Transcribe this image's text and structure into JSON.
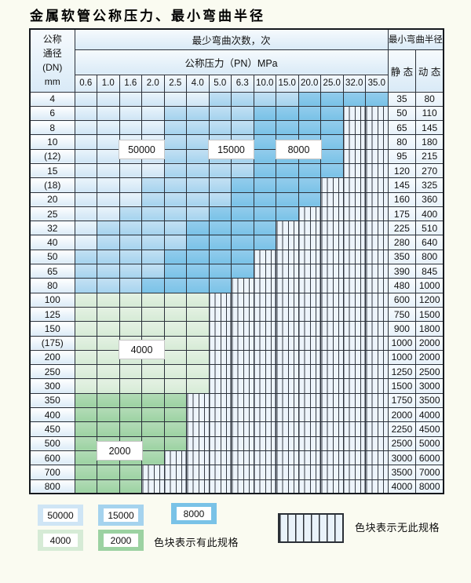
{
  "title": "金属软管公称压力、最小弯曲半径",
  "table": {
    "corner_lines": [
      "公称",
      "通径",
      "(DN)",
      "mm"
    ],
    "bend_cycles_header": "最少弯曲次数，次",
    "pressure_header": "公称压力（PN）MPa",
    "radius_header": "最小弯曲半径",
    "static_header": "静 态",
    "dynamic_header": "动 态",
    "pressures": [
      "0.6",
      "1.0",
      "1.6",
      "2.0",
      "2.5",
      "4.0",
      "5.0",
      "6.3",
      "10.0",
      "15.0",
      "20.0",
      "25.0",
      "32.0",
      "35.0"
    ],
    "rows": [
      {
        "dn": "4",
        "colored_columns": 14,
        "colored_through": "35.0",
        "palette": "blue",
        "static": "35",
        "dynamic": "80"
      },
      {
        "dn": "6",
        "colored_columns": 12,
        "colored_through": "25.0",
        "palette": "blue",
        "static": "50",
        "dynamic": "110"
      },
      {
        "dn": "8",
        "colored_columns": 12,
        "colored_through": "25.0",
        "palette": "blue",
        "static": "65",
        "dynamic": "145"
      },
      {
        "dn": "10",
        "colored_columns": 12,
        "colored_through": "25.0",
        "palette": "blue",
        "static": "80",
        "dynamic": "180"
      },
      {
        "dn": "(12)",
        "colored_columns": 12,
        "colored_through": "25.0",
        "palette": "blue",
        "static": "95",
        "dynamic": "215"
      },
      {
        "dn": "15",
        "colored_columns": 12,
        "colored_through": "25.0",
        "palette": "blue",
        "static": "120",
        "dynamic": "270"
      },
      {
        "dn": "(18)",
        "colored_columns": 11,
        "colored_through": "20.0",
        "palette": "blue",
        "static": "145",
        "dynamic": "325"
      },
      {
        "dn": "20",
        "colored_columns": 11,
        "colored_through": "20.0",
        "palette": "blue",
        "static": "160",
        "dynamic": "360"
      },
      {
        "dn": "25",
        "colored_columns": 10,
        "colored_through": "15.0",
        "palette": "blue",
        "static": "175",
        "dynamic": "400"
      },
      {
        "dn": "32",
        "colored_columns": 9,
        "colored_through": "10.0",
        "palette": "blue",
        "static": "225",
        "dynamic": "510"
      },
      {
        "dn": "40",
        "colored_columns": 9,
        "colored_through": "10.0",
        "palette": "blue",
        "static": "280",
        "dynamic": "640"
      },
      {
        "dn": "50",
        "colored_columns": 8,
        "colored_through": "6.3",
        "palette": "blue",
        "static": "350",
        "dynamic": "800"
      },
      {
        "dn": "65",
        "colored_columns": 8,
        "colored_through": "6.3",
        "palette": "blue",
        "static": "390",
        "dynamic": "845"
      },
      {
        "dn": "80",
        "colored_columns": 7,
        "colored_through": "5.0",
        "palette": "blue",
        "static": "480",
        "dynamic": "1000"
      },
      {
        "dn": "100",
        "colored_columns": 6,
        "colored_through": "4.0",
        "palette": "green-4000",
        "static": "600",
        "dynamic": "1200"
      },
      {
        "dn": "125",
        "colored_columns": 6,
        "colored_through": "4.0",
        "palette": "green-4000",
        "static": "750",
        "dynamic": "1500"
      },
      {
        "dn": "150",
        "colored_columns": 6,
        "colored_through": "4.0",
        "palette": "green-4000",
        "static": "900",
        "dynamic": "1800"
      },
      {
        "dn": "(175)",
        "colored_columns": 6,
        "colored_through": "4.0",
        "palette": "green-4000",
        "static": "1000",
        "dynamic": "2000"
      },
      {
        "dn": "200",
        "colored_columns": 6,
        "colored_through": "4.0",
        "palette": "green-4000",
        "static": "1000",
        "dynamic": "2000"
      },
      {
        "dn": "250",
        "colored_columns": 6,
        "colored_through": "4.0",
        "palette": "green-4000",
        "static": "1250",
        "dynamic": "2500"
      },
      {
        "dn": "300",
        "colored_columns": 6,
        "colored_through": "4.0",
        "palette": "green-4000",
        "static": "1500",
        "dynamic": "3000"
      },
      {
        "dn": "350",
        "colored_columns": 5,
        "colored_through": "2.5",
        "palette": "green-2000",
        "static": "1750",
        "dynamic": "3500"
      },
      {
        "dn": "400",
        "colored_columns": 5,
        "colored_through": "2.5",
        "palette": "green-2000",
        "static": "2000",
        "dynamic": "4000"
      },
      {
        "dn": "450",
        "colored_columns": 5,
        "colored_through": "2.5",
        "palette": "green-2000",
        "static": "2250",
        "dynamic": "4500"
      },
      {
        "dn": "500",
        "colored_columns": 5,
        "colored_through": "2.5",
        "palette": "green-2000",
        "static": "2500",
        "dynamic": "5000"
      },
      {
        "dn": "600",
        "colored_columns": 4,
        "colored_through": "2.0",
        "palette": "green-2000",
        "static": "3000",
        "dynamic": "6000"
      },
      {
        "dn": "700",
        "colored_columns": 3,
        "colored_through": "1.6",
        "palette": "green-2000",
        "static": "3500",
        "dynamic": "7000"
      },
      {
        "dn": "800",
        "colored_columns": 3,
        "colored_through": "1.6",
        "palette": "green-2000",
        "static": "4000",
        "dynamic": "8000"
      }
    ]
  },
  "overlay_labels": {
    "cycles_50000": "50000",
    "cycles_15000": "15000",
    "cycles_8000": "8000",
    "cycles_4000": "4000",
    "cycles_2000": "2000"
  },
  "legend": {
    "items": {
      "b50000": {
        "label": "50000",
        "color": "#cfe5f5"
      },
      "b15000": {
        "label": "15000",
        "color": "#a5d3ee"
      },
      "b8000": {
        "label": "8000",
        "color": "#79c2e7"
      },
      "g4000": {
        "label": "4000",
        "color": "#d6ebd6"
      },
      "g2000": {
        "label": "2000",
        "color": "#9cd2a2"
      }
    },
    "has_spec_text": "色块表示有此规格",
    "no_spec_text": "色块表示无此规格"
  },
  "colors": {
    "blue_light": "#cfe5f5",
    "blue_mid": "#a5d3ee",
    "blue_dark": "#79c2e7",
    "green_light": "#d6ebd6",
    "green_dark": "#9cd2a2",
    "hatch_bg": "#edf4fb"
  }
}
